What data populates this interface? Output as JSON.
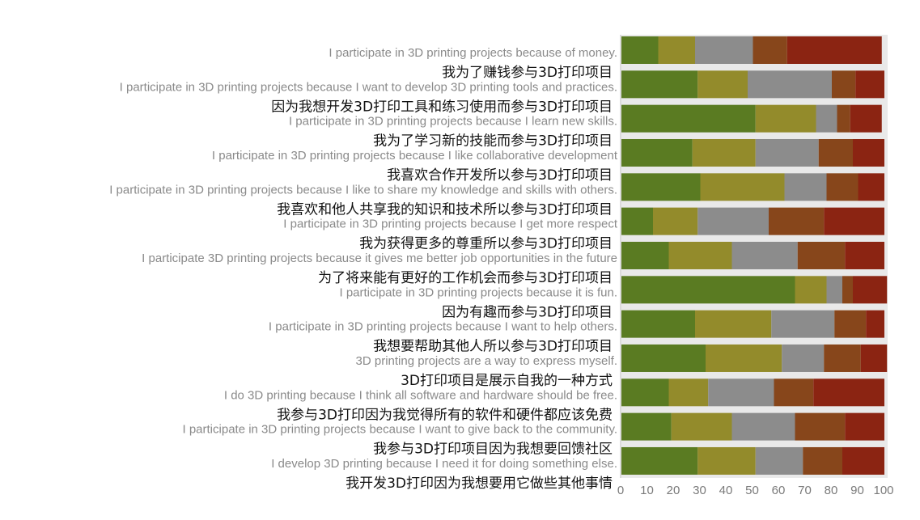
{
  "chart_data": {
    "type": "bar",
    "orientation": "horizontal",
    "stacked": true,
    "title": "",
    "xlabel": "",
    "ylabel": "",
    "xlim": [
      0,
      100
    ],
    "xticks": [
      0,
      10,
      20,
      30,
      40,
      50,
      60,
      70,
      80,
      90,
      100
    ],
    "grid": false,
    "legend": "none",
    "panel_color": "#e9e9e9",
    "categories": [
      "I participate in 3D printing projects because of money.",
      "I participate in 3D printing projects because I want to develop 3D printing tools and practices.",
      "I participate in 3D printing projects because I learn new skills.",
      "I participate in 3D printing projects because I like collaborative development",
      "I participate in 3D printing projects because I like to share my knowledge and skills with others.",
      "I participate in 3D printing projects because I get more respect",
      "I participate 3D printing projects because it gives me better job opportunities in the future",
      "I participate in 3D printing projects because it is fun.",
      "I participate in 3D printing projects because I want to help others.",
      "3D printing projects are a way to express myself.",
      "I do 3D printing because I think all software and hardware should be free.",
      "I participate in 3D printing projects because I want to give back to the community.",
      "I develop 3D printing because I need it for doing something else."
    ],
    "categories_zh": [
      "我为了赚钱参与3D打印项目",
      "因为我想开发3D打印工具和练习使用而参与3D打印项目",
      "我为了学习新的技能而参与3D打印项目",
      "我喜欢合作开发所以参与3D打印项目",
      "我喜欢和他人共享我的知识和技术所以参与3D打印项目",
      "我为获得更多的尊重所以参与3D打印项目",
      "为了将来能有更好的工作机会而参与3D打印项目",
      "因为有趣而参与3D打印项目",
      "我想要帮助其他人所以参与3D打印项目",
      "3D打印项目是展示自我的一种方式",
      "我参与3D打印因为我觉得所有的软件和硬件都应该免费",
      "我参与3D打印项目因为我想要回馈社区",
      "我开发3D打印因为我想要用它做些其他事情"
    ],
    "series": [
      {
        "color": "#5a7b22",
        "values": [
          14,
          29,
          51,
          27,
          30,
          12,
          18,
          66,
          28,
          32,
          18,
          19,
          29
        ]
      },
      {
        "color": "#938b2b",
        "values": [
          14,
          19,
          23,
          24,
          32,
          17,
          24,
          12,
          29,
          29,
          15,
          23,
          22
        ]
      },
      {
        "color": "#8c8c8c",
        "values": [
          22,
          32,
          8,
          24,
          16,
          27,
          25,
          6,
          24,
          16,
          25,
          24,
          18
        ]
      },
      {
        "color": "#87461b",
        "values": [
          13,
          9,
          5,
          13,
          12,
          21,
          18,
          4,
          12,
          14,
          15,
          19,
          15
        ]
      },
      {
        "color": "#8b2412",
        "values": [
          36,
          11,
          12,
          12,
          10,
          23,
          15,
          13,
          7,
          10,
          27,
          15,
          16
        ]
      }
    ]
  }
}
